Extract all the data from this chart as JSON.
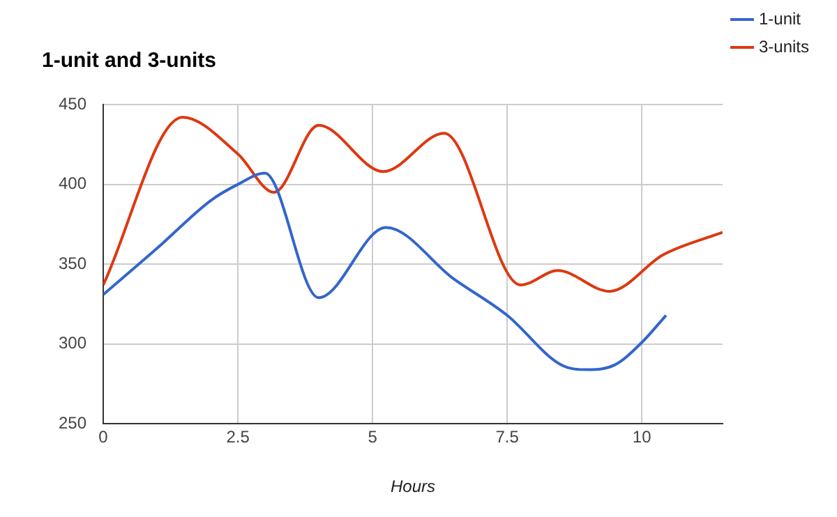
{
  "chart_data": {
    "type": "line",
    "title": "1-unit and 3-units",
    "xlabel": "Hours",
    "series": [
      {
        "name": "1-unit",
        "color": "#3366cc",
        "x": [
          0,
          1,
          2,
          2.5,
          3,
          4,
          5.25,
          6.5,
          7.5,
          8.5,
          9,
          9.5,
          10,
          10.45
        ],
        "values": [
          331,
          360,
          390,
          400,
          407,
          329,
          373,
          341,
          318,
          287,
          284,
          287,
          301,
          318
        ]
      },
      {
        "name": "3-units",
        "color": "#dc3912",
        "x": [
          0,
          1.47,
          2.5,
          3.17,
          4,
          5.2,
          6.33,
          7.75,
          8.44,
          9.4,
          10.4,
          11.5
        ],
        "values": [
          337,
          442,
          419,
          395,
          437,
          408,
          432,
          337,
          346,
          333,
          356,
          370
        ]
      }
    ],
    "xlim": [
      0,
      11.5
    ],
    "xticks": [
      0,
      2.5,
      5,
      7.5,
      10
    ],
    "ylim": [
      250,
      450
    ],
    "yticks": [
      250,
      300,
      350,
      400,
      450
    ],
    "grid": true,
    "legend": "right",
    "marker": "none",
    "line_style": "solid"
  }
}
